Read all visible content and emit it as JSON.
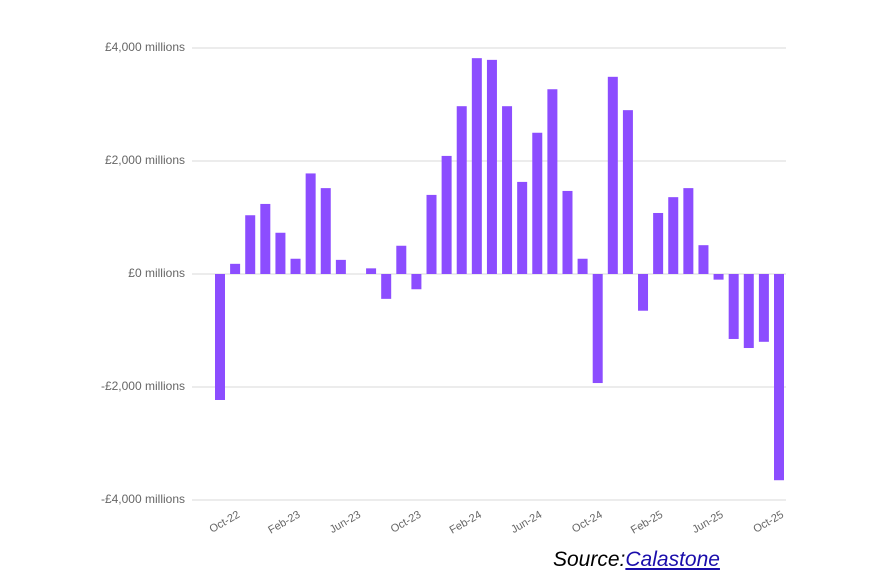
{
  "chart_data": {
    "type": "bar",
    "categories": [
      null,
      "Oct-22",
      null,
      null,
      null,
      "Feb-23",
      null,
      null,
      null,
      "Jun-23",
      null,
      null,
      null,
      "Oct-23",
      null,
      null,
      null,
      "Feb-24",
      null,
      null,
      null,
      "Jun-24",
      null,
      null,
      null,
      "Oct-24",
      null,
      null,
      null,
      "Feb-25",
      null,
      null,
      null,
      "Jun-25",
      null,
      null,
      null,
      "Oct-25"
    ],
    "values": [
      -2230,
      180,
      1040,
      1240,
      730,
      270,
      1780,
      1520,
      250,
      0,
      100,
      -440,
      500,
      -270,
      1400,
      2090,
      2970,
      3820,
      3790,
      2970,
      1630,
      2500,
      3270,
      1470,
      270,
      -1930,
      3490,
      2900,
      -650,
      1080,
      1360,
      1520,
      510,
      -100,
      -1150,
      -1310,
      -1200,
      -3650
    ],
    "color": "#8c4dff",
    "ylim": [
      -4000,
      4000
    ],
    "yticks": [
      {
        "value": -4000,
        "label": "-£4,000 millions"
      },
      {
        "value": -2000,
        "label": "-£2,000 millions"
      },
      {
        "value": 0,
        "label": "£0 millions"
      },
      {
        "value": 2000,
        "label": "£2,000 millions"
      },
      {
        "value": 4000,
        "label": "£4,000 millions"
      }
    ],
    "grid": true,
    "source_label": "Source:",
    "source_link": "Calastone"
  }
}
